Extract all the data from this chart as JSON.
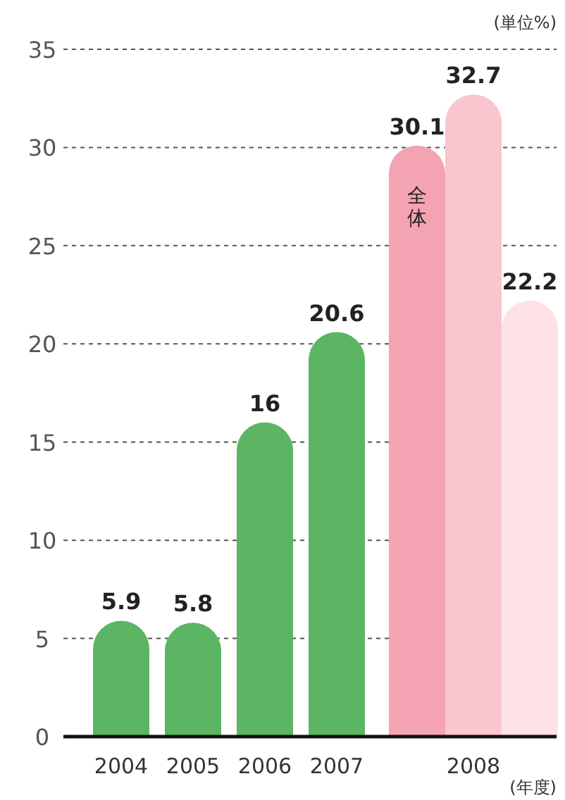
{
  "chart_data": {
    "type": "bar",
    "ylabel": "(単位%)",
    "xlabel": "(年度)",
    "categories": [
      "2004",
      "2005",
      "2006",
      "2007",
      "全体",
      null,
      null
    ],
    "values": [
      5.9,
      5.8,
      16,
      20.6,
      30.1,
      32.7,
      22.2
    ],
    "colors": [
      "#5cb563",
      "#5cb563",
      "#5cb563",
      "#5cb563",
      "#f4a3b3",
      "#f9c5ce",
      "#fde1e5"
    ],
    "ylim": [
      0,
      35
    ],
    "yticks": [
      0,
      5,
      10,
      15,
      20,
      25,
      30,
      35
    ],
    "grid": "y",
    "data_labels": true,
    "annotations": [
      "2008"
    ]
  }
}
